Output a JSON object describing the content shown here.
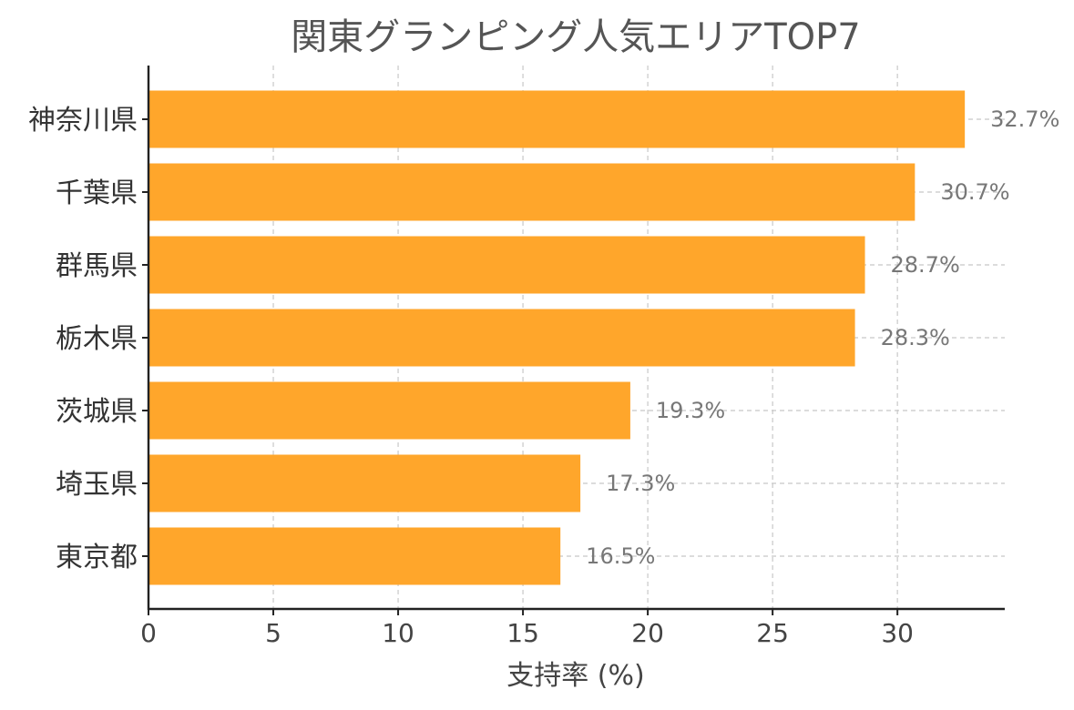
{
  "chart_data": {
    "type": "bar",
    "orientation": "horizontal",
    "title": "関東グランピング人気エリアTOP7",
    "xlabel": "支持率 (%)",
    "ylabel": "",
    "categories": [
      "神奈川県",
      "千葉県",
      "群馬県",
      "栃木県",
      "茨城県",
      "埼玉県",
      "東京都"
    ],
    "values": [
      32.7,
      30.7,
      28.7,
      28.3,
      19.3,
      17.3,
      16.5
    ],
    "data_labels": [
      "32.7%",
      "30.7%",
      "28.7%",
      "28.3%",
      "19.3%",
      "17.3%",
      "16.5%"
    ],
    "xlim": [
      0,
      34.3
    ],
    "xticks": [
      0,
      5,
      10,
      15,
      20,
      25,
      30
    ],
    "grid": true,
    "bar_color": "#FFA62B"
  }
}
